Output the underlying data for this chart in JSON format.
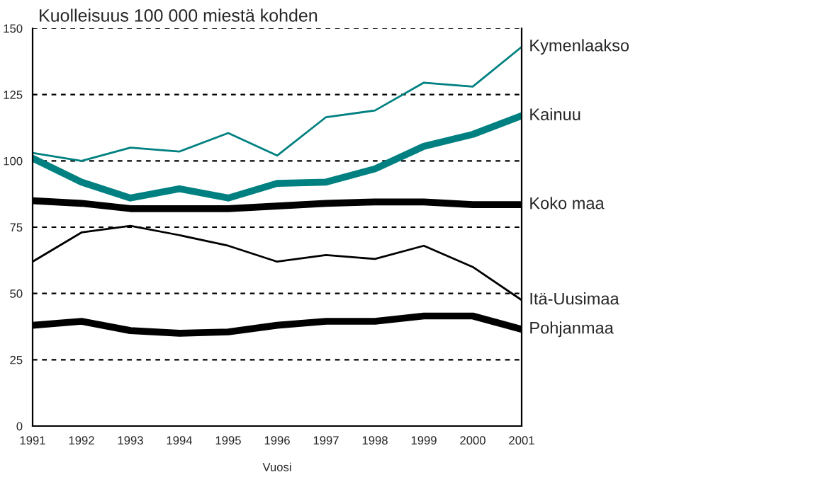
{
  "chart_data": {
    "type": "line",
    "title": "Kuolleisuus 100 000 miestä kohden",
    "xlabel": "Vuosi",
    "x": [
      1991,
      1992,
      1993,
      1994,
      1995,
      1996,
      1997,
      1998,
      1999,
      2000,
      2001
    ],
    "xlim": [
      1991,
      2001
    ],
    "xticks": [
      1991,
      1992,
      1993,
      1994,
      1995,
      1996,
      1997,
      1998,
      1999,
      2000,
      2001
    ],
    "ylim": [
      0,
      150
    ],
    "yticks": [
      0,
      25,
      50,
      75,
      100,
      125,
      150
    ],
    "grid": "y",
    "legend": false,
    "series": [
      {
        "name": "Kymenlaakso",
        "color": "#008080",
        "values": [
          103,
          100,
          105,
          103.5,
          110.5,
          102,
          116.5,
          119,
          129.5,
          128,
          143
        ]
      },
      {
        "name": "Kainuu",
        "color": "#008080",
        "values": [
          101,
          92,
          86,
          89.5,
          86,
          91.5,
          92,
          97,
          105.5,
          110,
          117
        ]
      },
      {
        "name": "Koko maa",
        "color": "#000000",
        "values": [
          85,
          84,
          82,
          82,
          82,
          83,
          84,
          84.5,
          84.5,
          83.5,
          83.5
        ]
      },
      {
        "name": "Itä-Uusimaa",
        "color": "#000000",
        "values": [
          62,
          73,
          75.5,
          72,
          68,
          62,
          64.5,
          63,
          68,
          60,
          47.5
        ]
      },
      {
        "name": "Pohjanmaa",
        "color": "#000000",
        "values": [
          38,
          39.5,
          36,
          35,
          35.5,
          38,
          39.5,
          39.5,
          41.5,
          41.5,
          36.5
        ]
      }
    ]
  }
}
